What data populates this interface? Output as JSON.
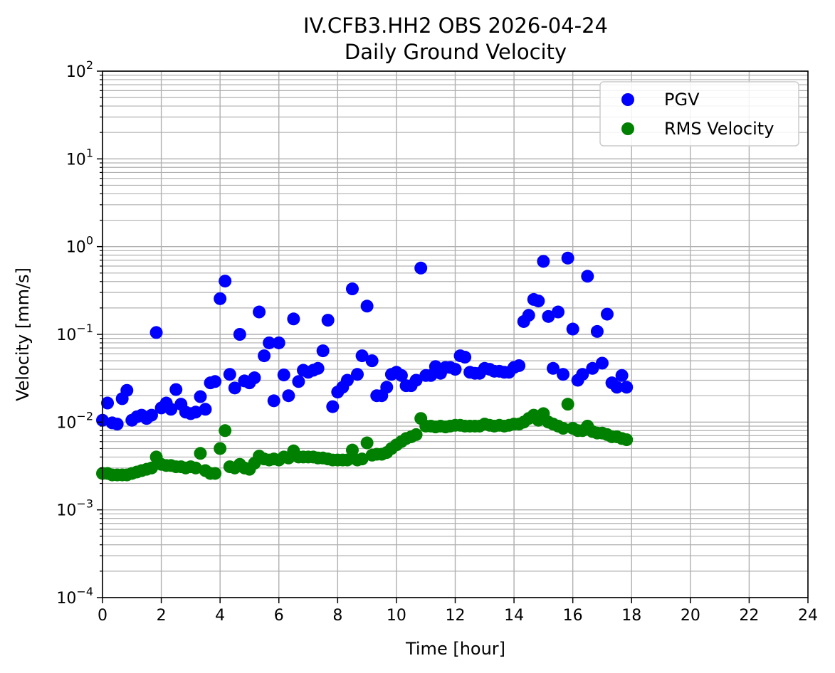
{
  "chart_data": {
    "type": "scatter",
    "title": "IV.CFB3.HH2 OBS 2026-04-24",
    "subtitle": "Daily Ground Velocity",
    "xlabel": "Time [hour]",
    "ylabel": "Velocity [mm/s]",
    "xlim": [
      0,
      24
    ],
    "ylim": [
      0.0001,
      100
    ],
    "yscale": "log",
    "x_ticks": [
      0,
      2,
      4,
      6,
      8,
      10,
      12,
      14,
      16,
      18,
      20,
      22,
      24
    ],
    "x_tick_labels": [
      "0",
      "2",
      "4",
      "6",
      "8",
      "10",
      "12",
      "14",
      "16",
      "18",
      "20",
      "22",
      "24"
    ],
    "y_ticks": [
      0.0001,
      0.001,
      0.01,
      0.1,
      1,
      10,
      100
    ],
    "y_tick_labels": [
      {
        "base": "10",
        "exp": "−4"
      },
      {
        "base": "10",
        "exp": "−3"
      },
      {
        "base": "10",
        "exp": "−2"
      },
      {
        "base": "10",
        "exp": "−1"
      },
      {
        "base": "10",
        "exp": "0"
      },
      {
        "base": "10",
        "exp": "1"
      },
      {
        "base": "10",
        "exp": "2"
      }
    ],
    "grid": true,
    "grid_minor": true,
    "legend_position": "top-right",
    "series": [
      {
        "name": "PGV",
        "color": "#0000ff",
        "x": [
          0.0,
          0.17,
          0.33,
          0.5,
          0.67,
          0.83,
          1.0,
          1.17,
          1.33,
          1.5,
          1.67,
          1.83,
          2.0,
          2.17,
          2.33,
          2.5,
          2.67,
          2.83,
          3.0,
          3.17,
          3.33,
          3.5,
          3.67,
          3.83,
          4.0,
          4.17,
          4.33,
          4.5,
          4.67,
          4.83,
          5.0,
          5.17,
          5.33,
          5.5,
          5.67,
          5.83,
          6.0,
          6.17,
          6.33,
          6.5,
          6.67,
          6.83,
          7.0,
          7.17,
          7.33,
          7.5,
          7.67,
          7.83,
          8.0,
          8.17,
          8.33,
          8.5,
          8.67,
          8.83,
          9.0,
          9.17,
          9.33,
          9.5,
          9.67,
          9.83,
          10.0,
          10.17,
          10.33,
          10.5,
          10.67,
          10.83,
          11.0,
          11.17,
          11.33,
          11.5,
          11.67,
          11.83,
          12.0,
          12.17,
          12.33,
          12.5,
          12.67,
          12.83,
          13.0,
          13.17,
          13.33,
          13.5,
          13.67,
          13.83,
          14.0,
          14.17,
          14.33,
          14.5,
          14.67,
          14.83,
          15.0,
          15.17,
          15.33,
          15.5,
          15.67,
          15.83,
          16.0,
          16.17,
          16.33,
          16.5,
          16.67,
          16.83,
          17.0,
          17.17,
          17.33,
          17.5,
          17.67,
          17.83
        ],
        "values": [
          0.0105,
          0.0165,
          0.0098,
          0.0095,
          0.0185,
          0.023,
          0.0105,
          0.0115,
          0.012,
          0.011,
          0.012,
          0.105,
          0.0145,
          0.0165,
          0.014,
          0.0235,
          0.016,
          0.013,
          0.0125,
          0.013,
          0.0195,
          0.014,
          0.028,
          0.029,
          0.255,
          0.405,
          0.035,
          0.0245,
          0.1,
          0.0295,
          0.028,
          0.032,
          0.18,
          0.057,
          0.08,
          0.0175,
          0.08,
          0.0345,
          0.02,
          0.15,
          0.029,
          0.039,
          0.037,
          0.039,
          0.041,
          0.065,
          0.145,
          0.015,
          0.022,
          0.025,
          0.03,
          0.33,
          0.035,
          0.057,
          0.21,
          0.05,
          0.02,
          0.02,
          0.025,
          0.035,
          0.037,
          0.034,
          0.026,
          0.026,
          0.03,
          0.57,
          0.034,
          0.034,
          0.043,
          0.036,
          0.042,
          0.042,
          0.04,
          0.057,
          0.055,
          0.037,
          0.036,
          0.036,
          0.041,
          0.04,
          0.038,
          0.038,
          0.037,
          0.037,
          0.042,
          0.044,
          0.14,
          0.165,
          0.25,
          0.24,
          0.68,
          0.16,
          0.041,
          0.18,
          0.035,
          0.74,
          0.115,
          0.03,
          0.035,
          0.46,
          0.041,
          0.108,
          0.047,
          0.17,
          0.028,
          0.025,
          0.034,
          0.025
        ]
      },
      {
        "name": "RMS Velocity",
        "color": "#008000",
        "x": [
          0.0,
          0.17,
          0.33,
          0.5,
          0.67,
          0.83,
          1.0,
          1.17,
          1.33,
          1.5,
          1.67,
          1.83,
          2.0,
          2.17,
          2.33,
          2.5,
          2.67,
          2.83,
          3.0,
          3.17,
          3.33,
          3.5,
          3.67,
          3.83,
          4.0,
          4.17,
          4.33,
          4.5,
          4.67,
          4.83,
          5.0,
          5.17,
          5.33,
          5.5,
          5.67,
          5.83,
          6.0,
          6.17,
          6.33,
          6.5,
          6.67,
          6.83,
          7.0,
          7.17,
          7.33,
          7.5,
          7.67,
          7.83,
          8.0,
          8.17,
          8.33,
          8.5,
          8.67,
          8.83,
          9.0,
          9.17,
          9.33,
          9.5,
          9.67,
          9.83,
          10.0,
          10.17,
          10.33,
          10.5,
          10.67,
          10.83,
          11.0,
          11.17,
          11.33,
          11.5,
          11.67,
          11.83,
          12.0,
          12.17,
          12.33,
          12.5,
          12.67,
          12.83,
          13.0,
          13.17,
          13.33,
          13.5,
          13.67,
          13.83,
          14.0,
          14.17,
          14.33,
          14.5,
          14.67,
          14.83,
          15.0,
          15.17,
          15.33,
          15.5,
          15.67,
          15.83,
          16.0,
          16.17,
          16.33,
          16.5,
          16.67,
          16.83,
          17.0,
          17.17,
          17.33,
          17.5,
          17.67,
          17.83
        ],
        "values": [
          0.0026,
          0.0026,
          0.0025,
          0.0025,
          0.0025,
          0.0025,
          0.0026,
          0.0027,
          0.0028,
          0.0029,
          0.003,
          0.004,
          0.0033,
          0.0032,
          0.0032,
          0.0031,
          0.0031,
          0.003,
          0.0031,
          0.003,
          0.0044,
          0.0028,
          0.0026,
          0.0026,
          0.005,
          0.008,
          0.0031,
          0.003,
          0.0033,
          0.003,
          0.0029,
          0.0034,
          0.0041,
          0.0038,
          0.0037,
          0.0038,
          0.0037,
          0.004,
          0.0039,
          0.0047,
          0.004,
          0.004,
          0.004,
          0.004,
          0.0039,
          0.0039,
          0.0038,
          0.0037,
          0.0037,
          0.0037,
          0.0037,
          0.0048,
          0.0037,
          0.0038,
          0.0058,
          0.0042,
          0.0043,
          0.0043,
          0.0045,
          0.005,
          0.0055,
          0.006,
          0.0065,
          0.0068,
          0.0072,
          0.011,
          0.009,
          0.009,
          0.0088,
          0.009,
          0.0088,
          0.009,
          0.0092,
          0.0092,
          0.009,
          0.009,
          0.009,
          0.009,
          0.0095,
          0.0092,
          0.009,
          0.0092,
          0.009,
          0.0092,
          0.0095,
          0.0095,
          0.01,
          0.011,
          0.012,
          0.0105,
          0.0125,
          0.01,
          0.0095,
          0.009,
          0.0085,
          0.016,
          0.0085,
          0.008,
          0.008,
          0.009,
          0.0078,
          0.0075,
          0.0075,
          0.0072,
          0.0068,
          0.0068,
          0.0065,
          0.0063
        ]
      }
    ]
  }
}
